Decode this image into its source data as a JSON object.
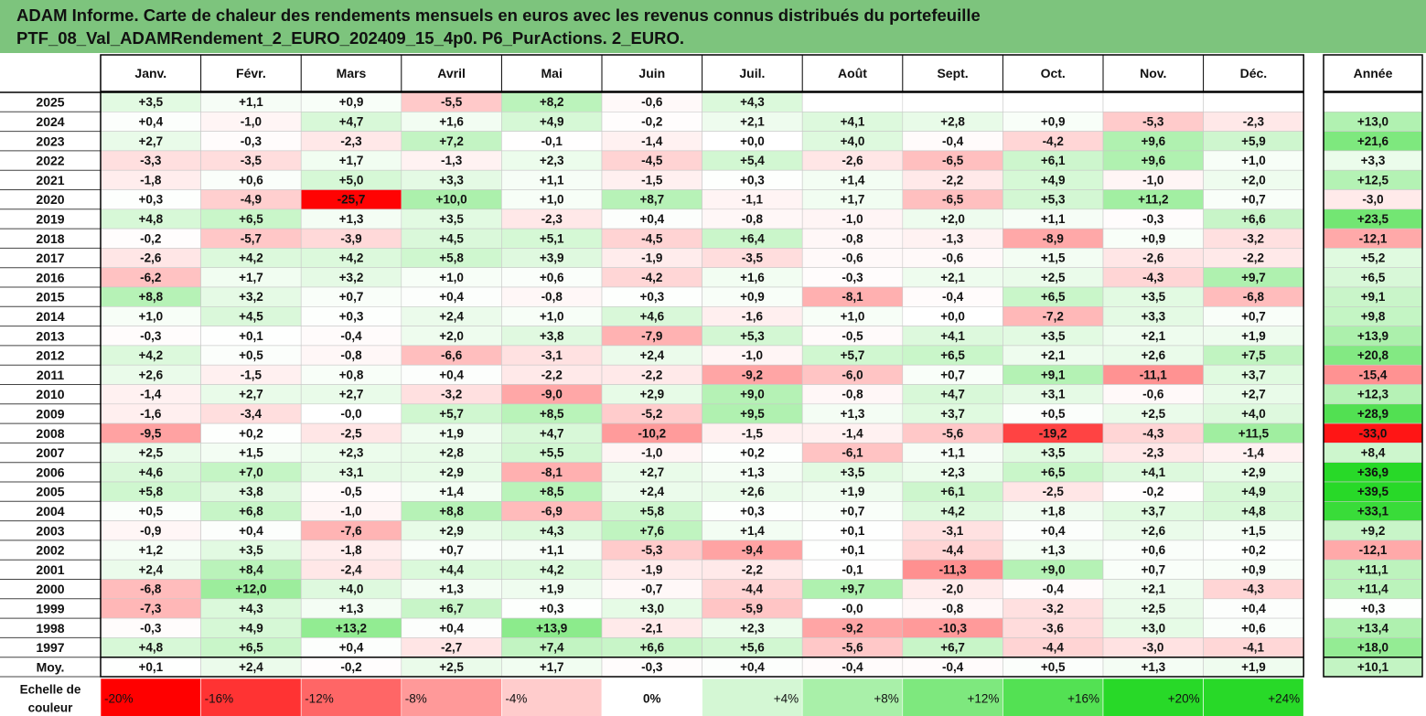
{
  "title": {
    "line1": "ADAM Informe. Carte de chaleur des rendements mensuels en euros avec les revenus connus distribués du portefeuille",
    "line2": "PTF_08_Val_ADAMRendement_2_EURO_202409_15_4p0. P6_PurActions. 2_EURO."
  },
  "colors": {
    "header_bg": "#7dc47d",
    "negative_max": "#ff0000",
    "positive_max": "#2bd92b",
    "neutral": "#ffffff"
  },
  "chart_data": {
    "type": "heatmap",
    "months": [
      "Janv.",
      "Févr.",
      "Mars",
      "Avril",
      "Mai",
      "Juin",
      "Juil.",
      "Août",
      "Sept.",
      "Oct.",
      "Nov.",
      "Déc."
    ],
    "year_header": "Année",
    "avg_label": "Moy.",
    "rows": [
      {
        "year": "2025",
        "values": [
          "+3,5",
          "+1,1",
          "+0,9",
          "-5,5",
          "+8,2",
          "-0,6",
          "+4,3",
          "",
          "",
          "",
          "",
          ""
        ],
        "annual": ""
      },
      {
        "year": "2024",
        "values": [
          "+0,4",
          "-1,0",
          "+4,7",
          "+1,6",
          "+4,9",
          "-0,2",
          "+2,1",
          "+4,1",
          "+2,8",
          "+0,9",
          "-5,3",
          "-2,3"
        ],
        "annual": "+13,0"
      },
      {
        "year": "2023",
        "values": [
          "+2,7",
          "-0,3",
          "-2,3",
          "+7,2",
          "-0,1",
          "-1,4",
          "+0,0",
          "+4,0",
          "-0,4",
          "-4,2",
          "+9,6",
          "+5,9"
        ],
        "annual": "+21,6"
      },
      {
        "year": "2022",
        "values": [
          "-3,3",
          "-3,5",
          "+1,7",
          "-1,3",
          "+2,3",
          "-4,5",
          "+5,4",
          "-2,6",
          "-6,5",
          "+6,1",
          "+9,6",
          "+1,0"
        ],
        "annual": "+3,3"
      },
      {
        "year": "2021",
        "values": [
          "-1,8",
          "+0,6",
          "+5,0",
          "+3,3",
          "+1,1",
          "-1,5",
          "+0,3",
          "+1,4",
          "-2,2",
          "+4,9",
          "-1,0",
          "+2,0"
        ],
        "annual": "+12,5"
      },
      {
        "year": "2020",
        "values": [
          "+0,3",
          "-4,9",
          "-25,7",
          "+10,0",
          "+1,0",
          "+8,7",
          "-1,1",
          "+1,7",
          "-6,5",
          "+5,3",
          "+11,2",
          "+0,7"
        ],
        "annual": "-3,0"
      },
      {
        "year": "2019",
        "values": [
          "+4,8",
          "+6,5",
          "+1,3",
          "+3,5",
          "-2,3",
          "+0,4",
          "-0,8",
          "-1,0",
          "+2,0",
          "+1,1",
          "-0,3",
          "+6,6"
        ],
        "annual": "+23,5"
      },
      {
        "year": "2018",
        "values": [
          "-0,2",
          "-5,7",
          "-3,9",
          "+4,5",
          "+5,1",
          "-4,5",
          "+6,4",
          "-0,8",
          "-1,3",
          "-8,9",
          "+0,9",
          "-3,2"
        ],
        "annual": "-12,1"
      },
      {
        "year": "2017",
        "values": [
          "-2,6",
          "+4,2",
          "+4,2",
          "+5,8",
          "+3,9",
          "-1,9",
          "-3,5",
          "-0,6",
          "-0,6",
          "+1,5",
          "-2,6",
          "-2,2"
        ],
        "annual": "+5,2"
      },
      {
        "year": "2016",
        "values": [
          "-6,2",
          "+1,7",
          "+3,2",
          "+1,0",
          "+0,6",
          "-4,2",
          "+1,6",
          "-0,3",
          "+2,1",
          "+2,5",
          "-4,3",
          "+9,7"
        ],
        "annual": "+6,5"
      },
      {
        "year": "2015",
        "values": [
          "+8,8",
          "+3,2",
          "+0,7",
          "+0,4",
          "-0,8",
          "+0,3",
          "+0,9",
          "-8,1",
          "-0,4",
          "+6,5",
          "+3,5",
          "-6,8"
        ],
        "annual": "+9,1"
      },
      {
        "year": "2014",
        "values": [
          "+1,0",
          "+4,5",
          "+0,3",
          "+2,4",
          "+1,0",
          "+4,6",
          "-1,6",
          "+1,0",
          "+0,0",
          "-7,2",
          "+3,3",
          "+0,7"
        ],
        "annual": "+9,8"
      },
      {
        "year": "2013",
        "values": [
          "-0,3",
          "+0,1",
          "-0,4",
          "+2,0",
          "+3,8",
          "-7,9",
          "+5,3",
          "-0,5",
          "+4,1",
          "+3,5",
          "+2,1",
          "+1,9"
        ],
        "annual": "+13,9"
      },
      {
        "year": "2012",
        "values": [
          "+4,2",
          "+0,5",
          "-0,8",
          "-6,6",
          "-3,1",
          "+2,4",
          "-1,0",
          "+5,7",
          "+6,5",
          "+2,1",
          "+2,6",
          "+7,5"
        ],
        "annual": "+20,8"
      },
      {
        "year": "2011",
        "values": [
          "+2,6",
          "-1,5",
          "+0,8",
          "+0,4",
          "-2,2",
          "-2,2",
          "-9,2",
          "-6,0",
          "+0,7",
          "+9,1",
          "-11,1",
          "+3,7"
        ],
        "annual": "-15,4"
      },
      {
        "year": "2010",
        "values": [
          "-1,4",
          "+2,7",
          "+2,7",
          "-3,2",
          "-9,0",
          "+2,9",
          "+9,0",
          "-0,8",
          "+4,7",
          "+3,1",
          "-0,6",
          "+2,7"
        ],
        "annual": "+12,3"
      },
      {
        "year": "2009",
        "values": [
          "-1,6",
          "-3,4",
          "-0,0",
          "+5,7",
          "+8,5",
          "-5,2",
          "+9,5",
          "+1,3",
          "+3,7",
          "+0,5",
          "+2,5",
          "+4,0"
        ],
        "annual": "+28,9"
      },
      {
        "year": "2008",
        "values": [
          "-9,5",
          "+0,2",
          "-2,5",
          "+1,9",
          "+4,7",
          "-10,2",
          "-1,5",
          "-1,4",
          "-5,6",
          "-19,2",
          "-4,3",
          "+11,5"
        ],
        "annual": "-33,0"
      },
      {
        "year": "2007",
        "values": [
          "+2,5",
          "+1,5",
          "+2,3",
          "+2,8",
          "+5,5",
          "-1,0",
          "+0,2",
          "-6,1",
          "+1,1",
          "+3,5",
          "-2,3",
          "-1,4"
        ],
        "annual": "+8,4"
      },
      {
        "year": "2006",
        "values": [
          "+4,6",
          "+7,0",
          "+3,1",
          "+2,9",
          "-8,1",
          "+2,7",
          "+1,3",
          "+3,5",
          "+2,3",
          "+6,5",
          "+4,1",
          "+2,9"
        ],
        "annual": "+36,9"
      },
      {
        "year": "2005",
        "values": [
          "+5,8",
          "+3,8",
          "-0,5",
          "+1,4",
          "+8,5",
          "+2,4",
          "+2,6",
          "+1,9",
          "+6,1",
          "-2,5",
          "-0,2",
          "+4,9"
        ],
        "annual": "+39,5"
      },
      {
        "year": "2004",
        "values": [
          "+0,5",
          "+6,8",
          "-1,0",
          "+8,8",
          "-6,9",
          "+5,8",
          "+0,3",
          "+0,7",
          "+4,2",
          "+1,8",
          "+3,7",
          "+4,8"
        ],
        "annual": "+33,1"
      },
      {
        "year": "2003",
        "values": [
          "-0,9",
          "+0,4",
          "-7,6",
          "+2,9",
          "+4,3",
          "+7,6",
          "+1,4",
          "+0,1",
          "-3,1",
          "+0,4",
          "+2,6",
          "+1,5"
        ],
        "annual": "+9,2"
      },
      {
        "year": "2002",
        "values": [
          "+1,2",
          "+3,5",
          "-1,8",
          "+0,7",
          "+1,1",
          "-5,3",
          "-9,4",
          "+0,1",
          "-4,4",
          "+1,3",
          "+0,6",
          "+0,2"
        ],
        "annual": "-12,1"
      },
      {
        "year": "2001",
        "values": [
          "+2,4",
          "+8,4",
          "-2,4",
          "+4,4",
          "+4,2",
          "-1,9",
          "-2,2",
          "-0,1",
          "-11,3",
          "+9,0",
          "+0,7",
          "+0,9"
        ],
        "annual": "+11,1"
      },
      {
        "year": "2000",
        "values": [
          "-6,8",
          "+12,0",
          "+4,0",
          "+1,3",
          "+1,9",
          "-0,7",
          "-4,4",
          "+9,7",
          "-2,0",
          "-0,4",
          "+2,1",
          "-4,3"
        ],
        "annual": "+11,4"
      },
      {
        "year": "1999",
        "values": [
          "-7,3",
          "+4,3",
          "+1,3",
          "+6,7",
          "+0,3",
          "+3,0",
          "-5,9",
          "-0,0",
          "-0,8",
          "-3,2",
          "+2,5",
          "+0,4"
        ],
        "annual": "+0,3"
      },
      {
        "year": "1998",
        "values": [
          "-0,3",
          "+4,9",
          "+13,2",
          "+0,4",
          "+13,9",
          "-2,1",
          "+2,3",
          "-9,2",
          "-10,3",
          "-3,6",
          "+3,0",
          "+0,6"
        ],
        "annual": "+13,4"
      },
      {
        "year": "1997",
        "values": [
          "+4,8",
          "+6,5",
          "+0,4",
          "-2,7",
          "+7,4",
          "+6,6",
          "+5,6",
          "-5,6",
          "+6,7",
          "-4,4",
          "-3,0",
          "-4,1"
        ],
        "annual": "+18,0"
      }
    ],
    "average": {
      "values": [
        "+0,1",
        "+2,4",
        "-0,2",
        "+2,5",
        "+1,7",
        "-0,3",
        "+0,4",
        "-0,4",
        "-0,4",
        "+0,5",
        "+1,3",
        "+1,9"
      ],
      "annual": "+10,1"
    },
    "scale": {
      "label_line1": "Echelle de",
      "label_line2": "couleur",
      "steps": [
        {
          "label": "-20%",
          "value": -20
        },
        {
          "label": "-16%",
          "value": -16
        },
        {
          "label": "-12%",
          "value": -12
        },
        {
          "label": "-8%",
          "value": -8
        },
        {
          "label": "-4%",
          "value": -4
        },
        {
          "label": "0%",
          "value": 0
        },
        {
          "label": "+4%",
          "value": 4
        },
        {
          "label": "+8%",
          "value": 8
        },
        {
          "label": "+12%",
          "value": 12
        },
        {
          "label": "+16%",
          "value": 16
        },
        {
          "label": "+20%",
          "value": 20
        },
        {
          "label": "+24%",
          "value": 24
        }
      ]
    }
  }
}
